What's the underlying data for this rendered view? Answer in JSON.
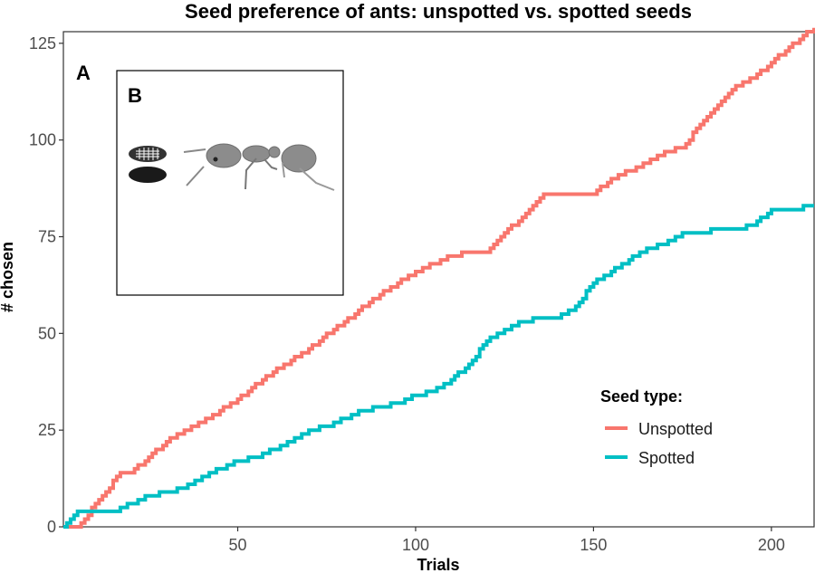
{
  "chart_data": {
    "type": "line",
    "title": "Seed preference of ants: unspotted vs. spotted seeds",
    "xlabel": "Trials",
    "ylabel": "# chosen",
    "xlim": [
      1,
      212
    ],
    "ylim": [
      0,
      128
    ],
    "xticks": [
      50,
      100,
      150,
      200
    ],
    "yticks": [
      0,
      25,
      50,
      75,
      100,
      125
    ],
    "grid": false,
    "panel_labels": [
      "A",
      "B"
    ],
    "inset": {
      "label": "B",
      "depicts": [
        "seed-unspotted",
        "seed-spotted",
        "ant"
      ]
    },
    "legend": {
      "title": "Seed type:",
      "position": "bottom-right"
    },
    "series": [
      {
        "name": "Unspotted",
        "color": "#F8766D",
        "x": [
          1,
          5,
          12,
          17,
          20,
          25,
          33,
          40,
          50,
          60,
          70,
          80,
          90,
          100,
          105,
          110,
          115,
          120,
          125,
          130,
          136,
          140,
          145,
          150,
          155,
          160,
          165,
          170,
          175,
          180,
          185,
          190,
          195,
          200,
          205,
          212
        ],
        "y": [
          0,
          0,
          8,
          14,
          14,
          18,
          24,
          27,
          33,
          40,
          46,
          53,
          60,
          66,
          68,
          70,
          71,
          71,
          76,
          80,
          86,
          86,
          86,
          86,
          90,
          92,
          94,
          97,
          98,
          104,
          109,
          114,
          116,
          120,
          124,
          129
        ]
      },
      {
        "name": "Spotted",
        "color": "#00BFC4",
        "x": [
          1,
          5,
          10,
          15,
          20,
          25,
          30,
          35,
          40,
          45,
          50,
          55,
          60,
          65,
          70,
          75,
          80,
          85,
          90,
          95,
          100,
          105,
          110,
          115,
          120,
          125,
          130,
          135,
          140,
          145,
          150,
          155,
          160,
          165,
          170,
          175,
          180,
          185,
          190,
          195,
          200,
          205,
          212
        ],
        "y": [
          0,
          4,
          4,
          4,
          6,
          8,
          9,
          10,
          13,
          15,
          17,
          18,
          20,
          22,
          25,
          26,
          28,
          30,
          31,
          32,
          34,
          35,
          38,
          42,
          48,
          51,
          53,
          54,
          54,
          57,
          63,
          66,
          69,
          72,
          73,
          76,
          76,
          77,
          77,
          78,
          82,
          82,
          83
        ]
      }
    ]
  }
}
